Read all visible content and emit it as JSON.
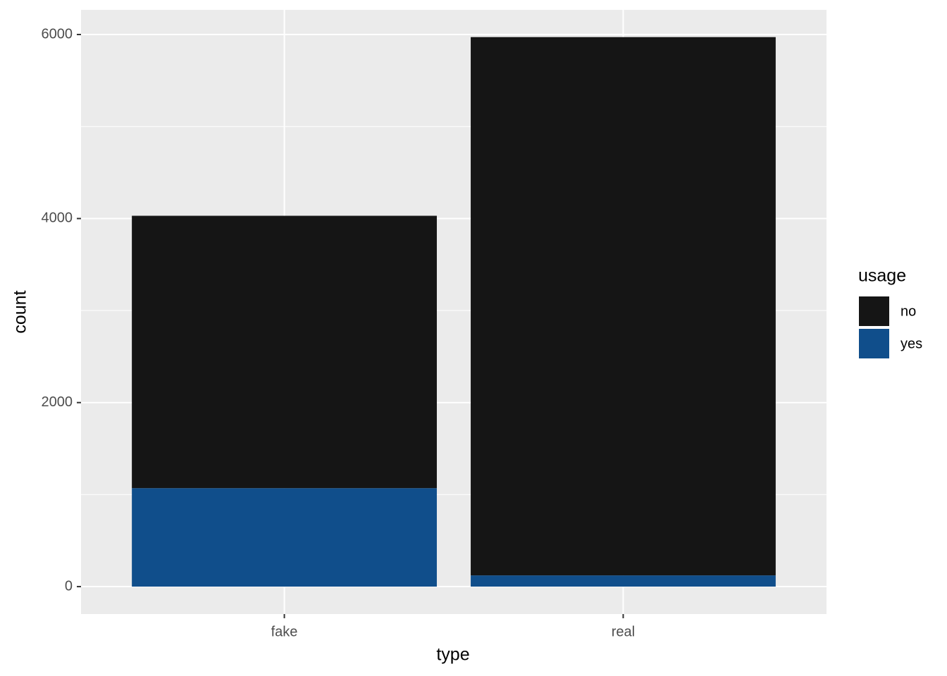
{
  "chart_data": {
    "type": "bar",
    "stacked": true,
    "x_label": "type",
    "y_label": "count",
    "categories": [
      "fake",
      "real"
    ],
    "series": [
      {
        "name": "no",
        "color": "#151515",
        "values": [
          2960,
          5850
        ]
      },
      {
        "name": "yes",
        "color": "#104e8b",
        "values": [
          1070,
          122
        ]
      }
    ],
    "legend_title": "usage",
    "legend": "right",
    "ylim": [
      -298,
      6268
    ],
    "yticks": [
      0,
      2000,
      4000,
      6000
    ],
    "minor_yticks": [
      1000,
      3000,
      5000
    ],
    "grid": true
  }
}
